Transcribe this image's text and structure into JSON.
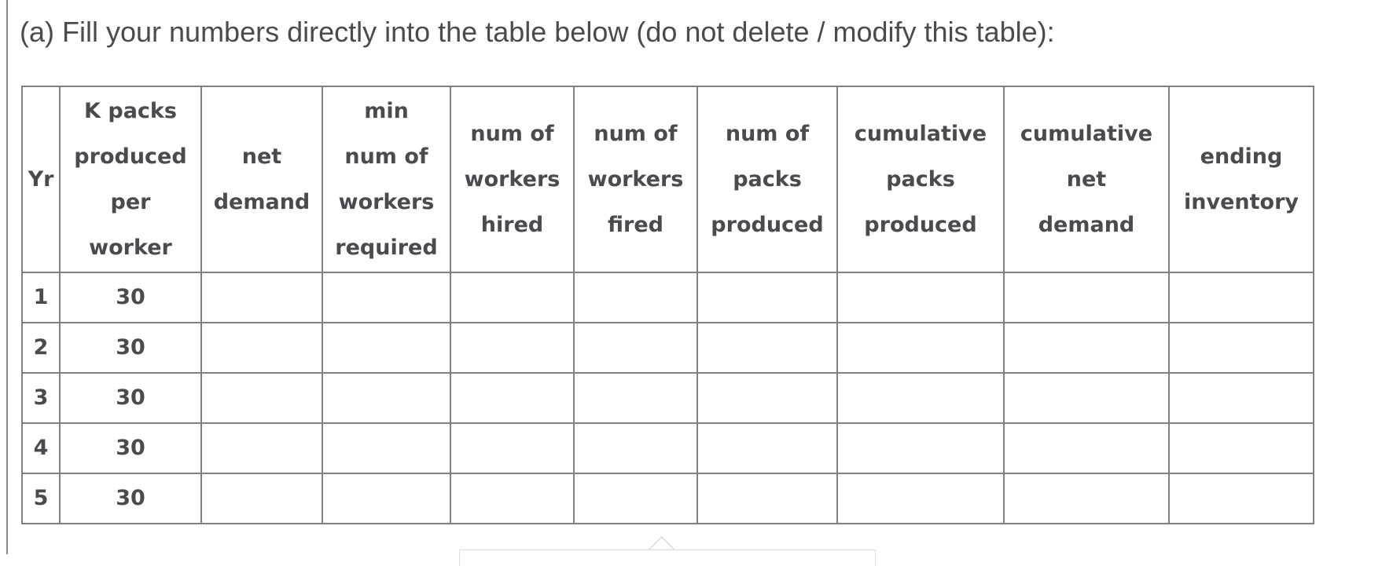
{
  "instruction": "(a) Fill your numbers directly into the table below (do not delete / modify this table):",
  "table": {
    "headers": [
      [
        "Yr"
      ],
      [
        "K packs",
        "produced",
        "per",
        "worker"
      ],
      [
        "net",
        "demand"
      ],
      [
        "min",
        "num of",
        "workers",
        "required"
      ],
      [
        "num of",
        "workers",
        "hired"
      ],
      [
        "num of",
        "workers",
        "fired"
      ],
      [
        "num of",
        "packs",
        "produced"
      ],
      [
        "cumulative",
        "packs",
        "produced"
      ],
      [
        "cumulative",
        "net",
        "demand"
      ],
      [
        "ending",
        "inventory"
      ]
    ],
    "rows": [
      [
        "1",
        "30",
        "",
        "",
        "",
        "",
        "",
        "",
        "",
        ""
      ],
      [
        "2",
        "30",
        "",
        "",
        "",
        "",
        "",
        "",
        "",
        ""
      ],
      [
        "3",
        "30",
        "",
        "",
        "",
        "",
        "",
        "",
        "",
        ""
      ],
      [
        "4",
        "30",
        "",
        "",
        "",
        "",
        "",
        "",
        "",
        ""
      ],
      [
        "5",
        "30",
        "",
        "",
        "",
        "",
        "",
        "",
        "",
        ""
      ]
    ]
  }
}
